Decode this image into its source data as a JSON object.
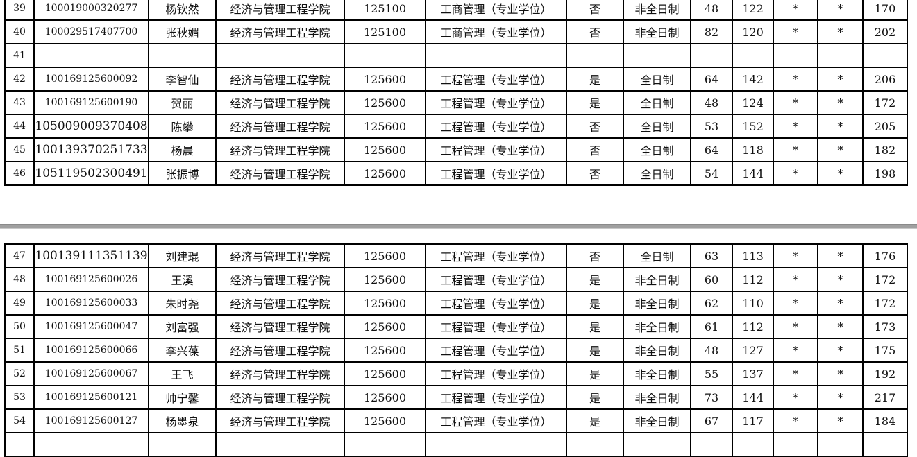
{
  "pages": [
    {
      "rows": [
        {
          "no": "39",
          "id": "100019000320277",
          "name": "杨钦然",
          "college": "经济与管理工程学院",
          "code": "125100",
          "major": "工商管理（专业学位）",
          "flag": "否",
          "mode": "非全日制",
          "s1": "48",
          "s2": "122",
          "s3": "*",
          "s4": "*",
          "total": "170"
        },
        {
          "no": "40",
          "id": "100029517407700",
          "name": "张秋媚",
          "college": "经济与管理工程学院",
          "code": "125100",
          "major": "工商管理（专业学位）",
          "flag": "否",
          "mode": "非全日制",
          "s1": "82",
          "s2": "120",
          "s3": "*",
          "s4": "*",
          "total": "202"
        },
        {
          "no": "41",
          "id": "",
          "name": "",
          "college": "",
          "code": "",
          "major": "",
          "flag": "",
          "mode": "",
          "s1": "",
          "s2": "",
          "s3": "",
          "s4": "",
          "total": ""
        },
        {
          "no": "42",
          "id": "100169125600092",
          "name": "李智仙",
          "college": "经济与管理工程学院",
          "code": "125600",
          "major": "工程管理（专业学位）",
          "flag": "是",
          "mode": "全日制",
          "s1": "64",
          "s2": "142",
          "s3": "*",
          "s4": "*",
          "total": "206"
        },
        {
          "no": "43",
          "id": "100169125600190",
          "name": "贺丽",
          "college": "经济与管理工程学院",
          "code": "125600",
          "major": "工程管理（专业学位）",
          "flag": "是",
          "mode": "全日制",
          "s1": "48",
          "s2": "124",
          "s3": "*",
          "s4": "*",
          "total": "172"
        },
        {
          "no": "44",
          "id": "105009009370408",
          "name": "陈攀",
          "college": "经济与管理工程学院",
          "code": "125600",
          "major": "工程管理（专业学位）",
          "flag": "否",
          "mode": "全日制",
          "s1": "53",
          "s2": "152",
          "s3": "*",
          "s4": "*",
          "total": "205"
        },
        {
          "no": "45",
          "id": "100139370251733",
          "name": "杨晨",
          "college": "经济与管理工程学院",
          "code": "125600",
          "major": "工程管理（专业学位）",
          "flag": "否",
          "mode": "全日制",
          "s1": "64",
          "s2": "118",
          "s3": "*",
          "s4": "*",
          "total": "182"
        },
        {
          "no": "46",
          "id": "105119502300491",
          "name": "张振博",
          "college": "经济与管理工程学院",
          "code": "125600",
          "major": "工程管理（专业学位）",
          "flag": "否",
          "mode": "全日制",
          "s1": "54",
          "s2": "144",
          "s3": "*",
          "s4": "*",
          "total": "198"
        }
      ]
    },
    {
      "rows": [
        {
          "no": "47",
          "id": "100139111351139",
          "name": "刘建琨",
          "college": "经济与管理工程学院",
          "code": "125600",
          "major": "工程管理（专业学位）",
          "flag": "否",
          "mode": "全日制",
          "s1": "63",
          "s2": "113",
          "s3": "*",
          "s4": "*",
          "total": "176"
        },
        {
          "no": "48",
          "id": "100169125600026",
          "name": "王溪",
          "college": "经济与管理工程学院",
          "code": "125600",
          "major": "工程管理（专业学位）",
          "flag": "是",
          "mode": "非全日制",
          "s1": "60",
          "s2": "112",
          "s3": "*",
          "s4": "*",
          "total": "172"
        },
        {
          "no": "49",
          "id": "100169125600033",
          "name": "朱时尧",
          "college": "经济与管理工程学院",
          "code": "125600",
          "major": "工程管理（专业学位）",
          "flag": "是",
          "mode": "非全日制",
          "s1": "62",
          "s2": "110",
          "s3": "*",
          "s4": "*",
          "total": "172"
        },
        {
          "no": "50",
          "id": "100169125600047",
          "name": "刘富强",
          "college": "经济与管理工程学院",
          "code": "125600",
          "major": "工程管理（专业学位）",
          "flag": "是",
          "mode": "非全日制",
          "s1": "61",
          "s2": "112",
          "s3": "*",
          "s4": "*",
          "total": "173"
        },
        {
          "no": "51",
          "id": "100169125600066",
          "name": "李兴葆",
          "college": "经济与管理工程学院",
          "code": "125600",
          "major": "工程管理（专业学位）",
          "flag": "是",
          "mode": "非全日制",
          "s1": "48",
          "s2": "127",
          "s3": "*",
          "s4": "*",
          "total": "175"
        },
        {
          "no": "52",
          "id": "100169125600067",
          "name": "王飞",
          "college": "经济与管理工程学院",
          "code": "125600",
          "major": "工程管理（专业学位）",
          "flag": "是",
          "mode": "非全日制",
          "s1": "55",
          "s2": "137",
          "s3": "*",
          "s4": "*",
          "total": "192"
        },
        {
          "no": "53",
          "id": "100169125600121",
          "name": "帅宁馨",
          "college": "经济与管理工程学院",
          "code": "125600",
          "major": "工程管理（专业学位）",
          "flag": "是",
          "mode": "非全日制",
          "s1": "73",
          "s2": "144",
          "s3": "*",
          "s4": "*",
          "total": "217"
        },
        {
          "no": "54",
          "id": "100169125600127",
          "name": "杨墨泉",
          "college": "经济与管理工程学院",
          "code": "125600",
          "major": "工程管理（专业学位）",
          "flag": "是",
          "mode": "非全日制",
          "s1": "67",
          "s2": "117",
          "s3": "*",
          "s4": "*",
          "total": "184"
        },
        {
          "no": "",
          "id": "",
          "name": "",
          "college": "",
          "code": "",
          "major": "",
          "flag": "",
          "mode": "",
          "s1": "",
          "s2": "",
          "s3": "",
          "s4": "",
          "total": ""
        }
      ]
    }
  ]
}
